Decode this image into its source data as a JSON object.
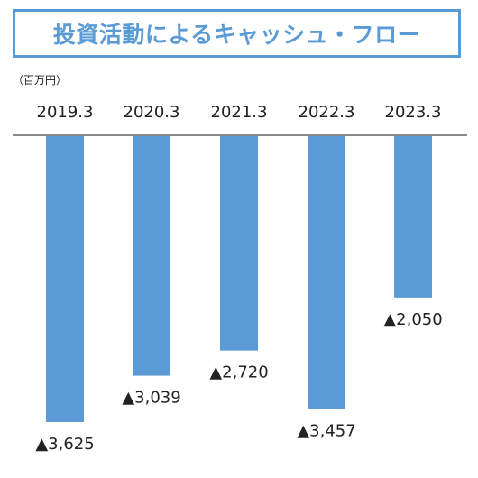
{
  "title": "投資活動によるキャッシュ・フロー",
  "unit_label": "（百万円）",
  "colors": {
    "accent": "#5b9bd5",
    "bar": "#5b9bd5",
    "axis": "#888888",
    "text": "#222222"
  },
  "chart_data": {
    "type": "bar",
    "title": "投資活動によるキャッシュ・フロー",
    "xlabel": "",
    "ylabel": "",
    "y_unit": "百万円",
    "categories": [
      "2019.3",
      "2020.3",
      "2021.3",
      "2022.3",
      "2023.3"
    ],
    "values": [
      -3625,
      -3039,
      -2720,
      -3457,
      -2050
    ],
    "value_labels": [
      "▲3,625",
      "▲3,039",
      "▲2,720",
      "▲3,457",
      "▲2,050"
    ],
    "ylim": [
      -3700,
      0
    ],
    "grid": false,
    "legend": "none"
  }
}
